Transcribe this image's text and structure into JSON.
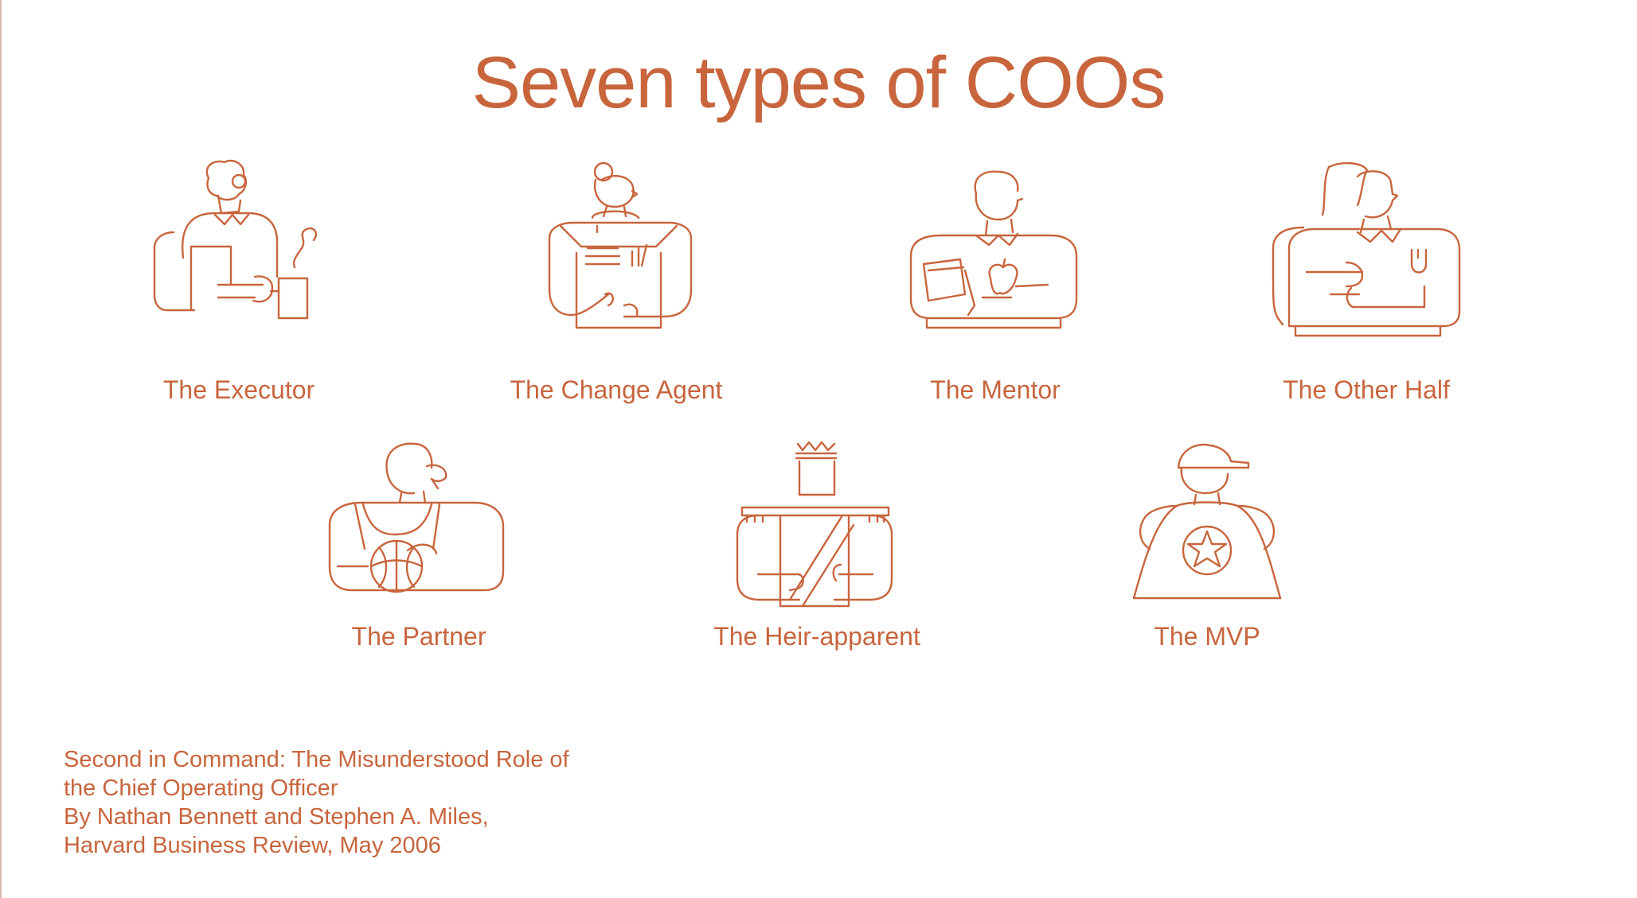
{
  "page": {
    "title": "Seven types of COOs",
    "accent_color": "#c8653d"
  },
  "coo_types": [
    {
      "label": "The Executor",
      "icon": "executor-icon"
    },
    {
      "label": "The Change Agent",
      "icon": "change-agent-icon"
    },
    {
      "label": "The Mentor",
      "icon": "mentor-icon"
    },
    {
      "label": "The Other Half",
      "icon": "other-half-icon"
    },
    {
      "label": "The Partner",
      "icon": "partner-icon"
    },
    {
      "label": "The Heir-apparent",
      "icon": "heir-apparent-icon"
    },
    {
      "label": "The MVP",
      "icon": "mvp-icon"
    }
  ],
  "citation": {
    "lines": [
      "Second in Command: The Misunderstood Role of",
      "the Chief Operating Officer",
      "By Nathan Bennett and Stephen A. Miles,",
      "Harvard Business Review, May 2006"
    ]
  }
}
